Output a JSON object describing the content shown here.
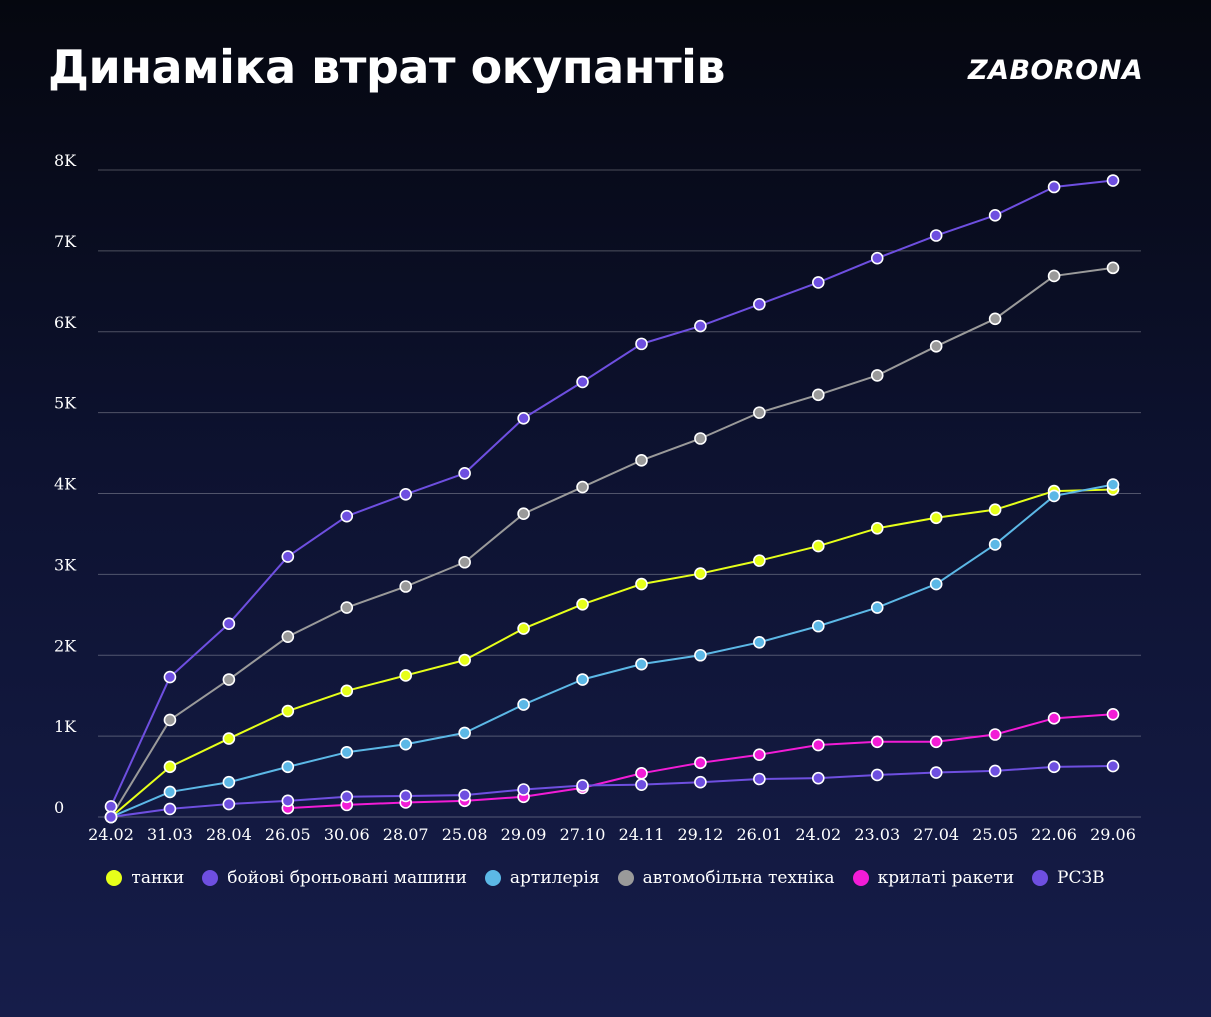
{
  "title": "Динаміка втрат окупантів",
  "logo": "ZABORONA",
  "chart_data": {
    "type": "line",
    "categories": [
      "24.02",
      "31.03",
      "28.04",
      "26.05",
      "30.06",
      "28.07",
      "25.08",
      "29.09",
      "27.10",
      "24.11",
      "29.12",
      "26.01",
      "24.02",
      "23.03",
      "27.04",
      "25.05",
      "22.06",
      "29.06"
    ],
    "y_ticks": [
      {
        "value": 0,
        "label": "0"
      },
      {
        "value": 1000,
        "label": "1K"
      },
      {
        "value": 2000,
        "label": "2K"
      },
      {
        "value": 3000,
        "label": "3K"
      },
      {
        "value": 4000,
        "label": "4K"
      },
      {
        "value": 5000,
        "label": "5K"
      },
      {
        "value": 6000,
        "label": "6K"
      },
      {
        "value": 7000,
        "label": "7K"
      },
      {
        "value": 8000,
        "label": "8K"
      }
    ],
    "ylim": [
      0,
      8000
    ],
    "grid": true,
    "legend_position": "bottom",
    "series": [
      {
        "name": "танки",
        "color": "#e6ff1a",
        "values": [
          0,
          620,
          970,
          1310,
          1560,
          1750,
          1940,
          2330,
          2630,
          2880,
          3010,
          3170,
          3350,
          3570,
          3700,
          3800,
          4030,
          4050
        ]
      },
      {
        "name": "бойові броньовані машини",
        "color": "#6e4fe0",
        "values": [
          130,
          1730,
          2390,
          3220,
          3720,
          3990,
          4250,
          4930,
          5380,
          5850,
          6070,
          6340,
          6610,
          6910,
          7190,
          7440,
          7790,
          7870
        ]
      },
      {
        "name": "артилерія",
        "color": "#5cb8e6",
        "values": [
          0,
          310,
          430,
          620,
          800,
          900,
          1040,
          1390,
          1700,
          1890,
          2000,
          2160,
          2360,
          2590,
          2880,
          3370,
          3970,
          4110
        ]
      },
      {
        "name": "автомобільна техніка",
        "color": "#9a9a9a",
        "values": [
          0,
          1200,
          1700,
          2230,
          2590,
          2850,
          3150,
          3750,
          4080,
          4410,
          4680,
          5000,
          5220,
          5460,
          5820,
          6160,
          6690,
          6790
        ]
      },
      {
        "name": "крилаті ракети",
        "color": "#f21cd6",
        "values": [
          null,
          null,
          null,
          110,
          150,
          180,
          200,
          250,
          360,
          540,
          670,
          770,
          890,
          930,
          930,
          1020,
          1220,
          1270
        ]
      },
      {
        "name": "РСЗВ",
        "color": "#6e4fe0",
        "values": [
          0,
          100,
          160,
          200,
          250,
          260,
          270,
          340,
          390,
          400,
          430,
          470,
          480,
          520,
          550,
          570,
          620,
          630
        ]
      }
    ]
  }
}
